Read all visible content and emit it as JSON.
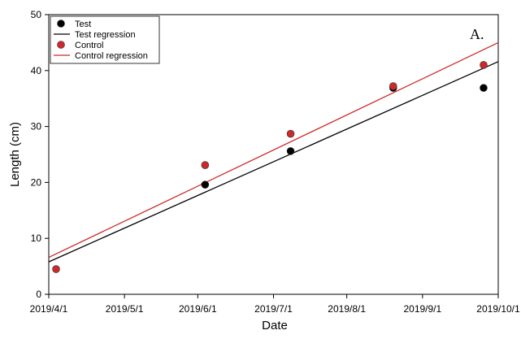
{
  "chart_data": {
    "type": "scatter",
    "xlabel": "Date",
    "ylabel": "Length (cm)",
    "xlim": [
      "2019-03-31",
      "2019-10-01"
    ],
    "ylim": [
      0,
      50
    ],
    "x_ticks": [
      "2019-03-31",
      "2019-05-01",
      "2019-05-31",
      "2019-07-01",
      "2019-07-31",
      "2019-08-31",
      "2019-10-01"
    ],
    "x_tick_labels": [
      "2019/4/1",
      "2019/5/1",
      "2019/6/1",
      "2019/7/1",
      "2019/8/1",
      "2019/9/1",
      "2019/10/1"
    ],
    "y_ticks": [
      0,
      10,
      20,
      30,
      40,
      50
    ],
    "y_tick_labels": [
      "0",
      "10",
      "20",
      "30",
      "40",
      "50"
    ],
    "grid": false,
    "legend_position": "top-left",
    "annotation": "A.",
    "series": [
      {
        "name": "Test",
        "kind": "points",
        "color": "#000000",
        "points": [
          {
            "x": "2019-06-03",
            "y": 19.6
          },
          {
            "x": "2019-07-08",
            "y": 25.6
          },
          {
            "x": "2019-08-19",
            "y": 36.9
          },
          {
            "x": "2019-09-25",
            "y": 36.9
          }
        ]
      },
      {
        "name": "Test regression",
        "kind": "line",
        "color": "#000000",
        "points": [
          {
            "x": "2019-03-31",
            "y": 5.8
          },
          {
            "x": "2019-10-01",
            "y": 41.6
          }
        ]
      },
      {
        "name": "Control",
        "kind": "points",
        "color": "#cc2a2a",
        "points": [
          {
            "x": "2019-04-03",
            "y": 4.5
          },
          {
            "x": "2019-06-03",
            "y": 23.1
          },
          {
            "x": "2019-07-08",
            "y": 28.7
          },
          {
            "x": "2019-08-19",
            "y": 37.2
          },
          {
            "x": "2019-09-25",
            "y": 41.0
          }
        ]
      },
      {
        "name": "Control regression",
        "kind": "line",
        "color": "#cc2a2a",
        "points": [
          {
            "x": "2019-03-31",
            "y": 6.6
          },
          {
            "x": "2019-10-01",
            "y": 45.0
          }
        ]
      }
    ]
  }
}
